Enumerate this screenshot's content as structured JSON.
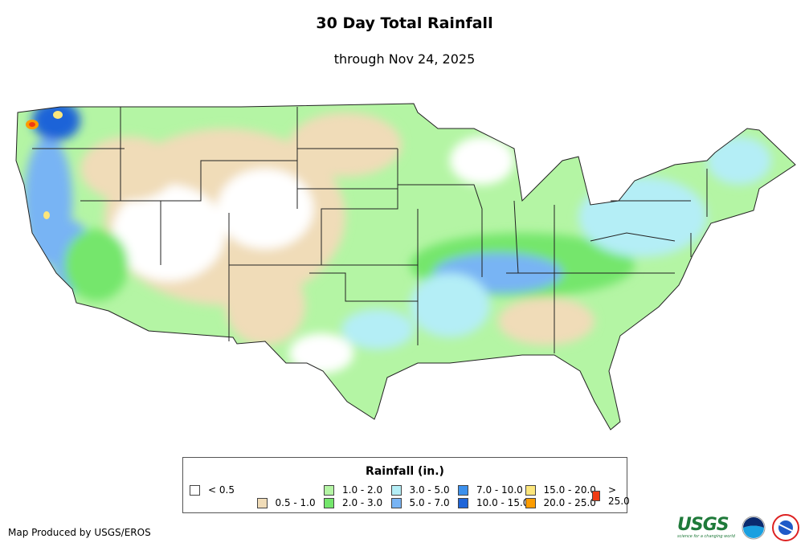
{
  "header": {
    "title": "30 Day Total Rainfall",
    "subtitle": "through Nov 24, 2025"
  },
  "legend": {
    "title": "Rainfall (in.)",
    "items": [
      {
        "label": "< 0.5",
        "color": "#ffffff"
      },
      {
        "label": "0.5 - 1.0",
        "color": "#f0dcb8"
      },
      {
        "label": "1.0 - 2.0",
        "color": "#b4f5a4"
      },
      {
        "label": "2.0 - 3.0",
        "color": "#74e66c"
      },
      {
        "label": "3.0 - 5.0",
        "color": "#b4eef6"
      },
      {
        "label": "5.0 - 7.0",
        "color": "#78b4f4"
      },
      {
        "label": "7.0 - 10.0",
        "color": "#3c90ec"
      },
      {
        "label": "10.0 - 15.0",
        "color": "#1e64d8"
      },
      {
        "label": "15.0 - 20.0",
        "color": "#fce67c"
      },
      {
        "label": "20.0 - 25.0",
        "color": "#fc9c00"
      },
      {
        "label": "> 25.0",
        "color": "#f03c14"
      }
    ]
  },
  "footer": {
    "credit": "Map Produced by USGS/EROS"
  },
  "logos": {
    "usgs": "USGS",
    "usgs_tagline": "science for a changing world",
    "noaa": "noaa",
    "nws": "NATIONAL WEATHER SERVICE"
  }
}
